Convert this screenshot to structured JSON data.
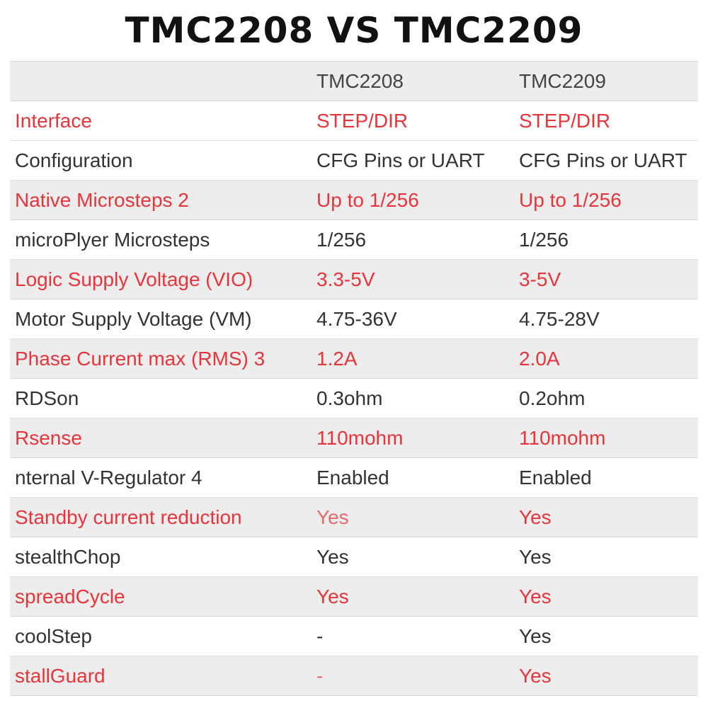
{
  "title": "TMC2208 VS TMC2209",
  "header": {
    "col1": "",
    "col2": "TMC2208",
    "col3": "TMC2209"
  },
  "rows": [
    {
      "label": "Interface",
      "tmc2208": "STEP/DIR",
      "tmc2209": "STEP/DIR"
    },
    {
      "label": "Configuration",
      "tmc2208": "CFG Pins or UART",
      "tmc2209": "CFG Pins or UART"
    },
    {
      "label": "Native Microsteps 2",
      "tmc2208": "Up to 1/256",
      "tmc2209": "Up to 1/256"
    },
    {
      "label": "microPlyer Microsteps",
      "tmc2208": "1/256",
      "tmc2209": "1/256"
    },
    {
      "label": "Logic Supply Voltage (VIO)",
      "tmc2208": "3.3-5V",
      "tmc2209": "3-5V"
    },
    {
      "label": "Motor Supply Voltage (VM)",
      "tmc2208": "4.75-36V",
      "tmc2209": "4.75-28V"
    },
    {
      "label": "Phase Current max (RMS) 3",
      "tmc2208": "1.2A",
      "tmc2209": "2.0A"
    },
    {
      "label": "RDSon",
      "tmc2208": "0.3ohm",
      "tmc2209": "0.2ohm"
    },
    {
      "label": "Rsense",
      "tmc2208": "110mohm",
      "tmc2209": "110mohm"
    },
    {
      "label": "nternal V-Regulator 4",
      "tmc2208": "Enabled",
      "tmc2209": "Enabled"
    },
    {
      "label": "Standby current reduction",
      "tmc2208": "Yes",
      "tmc2209": "Yes"
    },
    {
      "label": "stealthChop",
      "tmc2208": "Yes",
      "tmc2209": "Yes"
    },
    {
      "label": "spreadCycle",
      "tmc2208": "Yes",
      "tmc2209": "Yes"
    },
    {
      "label": "coolStep",
      "tmc2208": "-",
      "tmc2209": "Yes"
    },
    {
      "label": "stallGuard",
      "tmc2208": "-",
      "tmc2209": "Yes"
    }
  ],
  "colors": {
    "highlight_text": "#e8353b",
    "normal_text": "#333333",
    "shaded_row": "#ededed"
  }
}
